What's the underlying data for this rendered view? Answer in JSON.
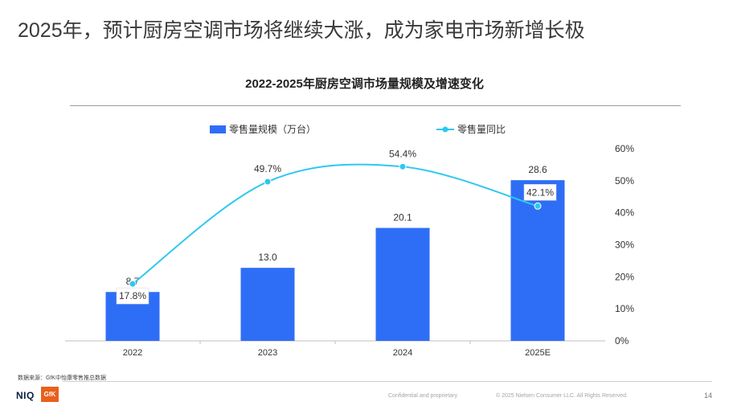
{
  "slide": {
    "title": "2025年，预计厨房空调市场将继续大涨，成为家电市场新增长极",
    "source": "数据来源：GfK中怡康零售推总数据",
    "confidential": "Confidential and proprietary",
    "copyright": "© 2025 Nielsen Consumer LLC. All Rights Reserved.",
    "page_number": "14",
    "logo_niq": "NIQ",
    "logo_gfk": "GfK"
  },
  "chart_data": {
    "type": "bar",
    "title": "2022-2025年厨房空调市场量规模及增速变化",
    "categories": [
      "2022",
      "2023",
      "2024",
      "2025E"
    ],
    "legend_position": "top",
    "grid": false,
    "series": [
      {
        "name": "零售量规模（万台）",
        "type": "bar",
        "axis": "left",
        "color": "#2e6ef7",
        "values": [
          8.7,
          13.0,
          20.1,
          28.6
        ],
        "labels": [
          "8.7",
          "13.0",
          "20.1",
          "28.6"
        ]
      },
      {
        "name": "零售量同比",
        "type": "line",
        "axis": "right",
        "color": "#2ec8f0",
        "values": [
          17.8,
          49.7,
          54.4,
          42.1
        ],
        "labels": [
          "17.8%",
          "49.7%",
          "54.4%",
          "42.1%"
        ]
      }
    ],
    "y_left_range": [
      0,
      34.2
    ],
    "y_right_range": [
      0,
      60
    ],
    "y_right_ticks": [
      "0%",
      "10%",
      "20%",
      "30%",
      "40%",
      "50%",
      "60%"
    ]
  }
}
